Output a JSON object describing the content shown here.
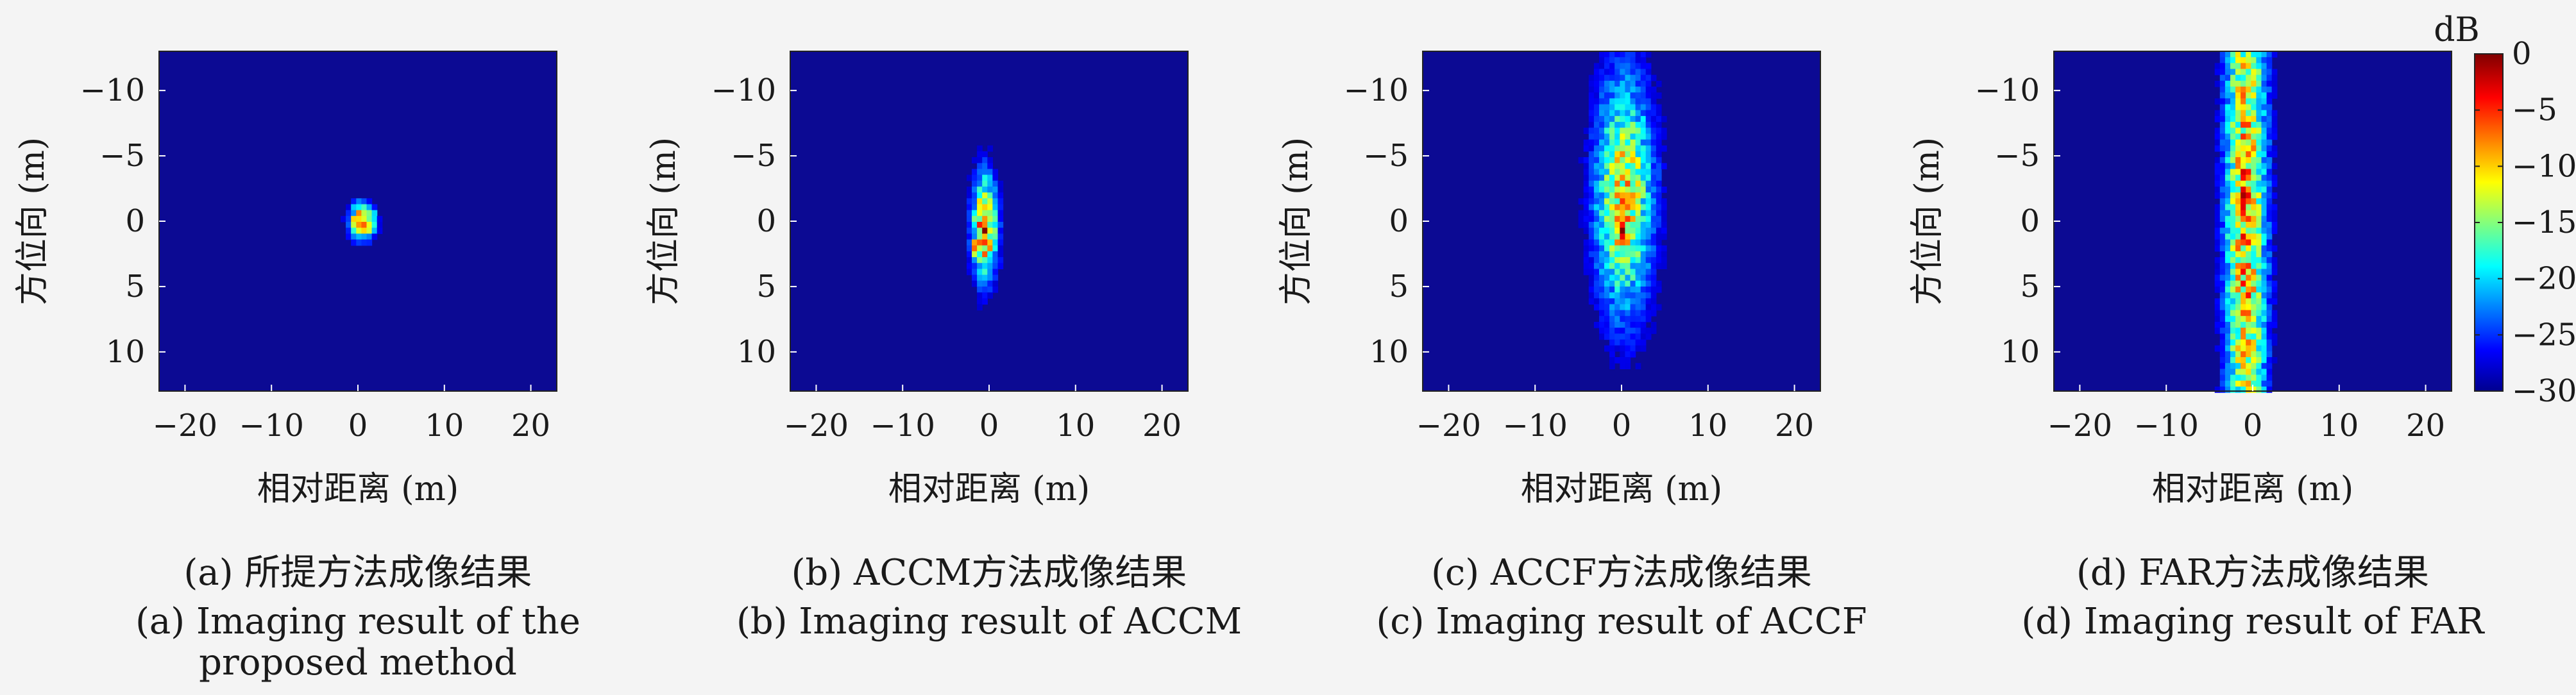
{
  "chart_data": [
    {
      "type": "heatmap",
      "caption_cn": "(a) 所提方法成像结果",
      "caption_en": [
        "(a) Imaging result of the",
        "proposed method"
      ],
      "xlabel": "相对距离 (m)",
      "ylabel": "方位向 (m)",
      "xlim": [
        -23,
        23
      ],
      "ylim": [
        -13,
        13
      ],
      "xticks": [
        -20,
        -10,
        0,
        10,
        20
      ],
      "yticks": [
        -10,
        -5,
        0,
        5,
        10
      ],
      "y_axis_inverted": true,
      "energy_blobs": [
        {
          "x": 0.5,
          "y": 0.0,
          "sx": 1.0,
          "sy": 0.9,
          "peak_db": 0
        },
        {
          "x": 1.2,
          "y": 0.6,
          "sx": 0.5,
          "sy": 0.5,
          "peak_db": -12
        }
      ]
    },
    {
      "type": "heatmap",
      "caption_cn": "(b) ACCM方法成像结果",
      "caption_en": [
        "(b) Imaging result of ACCM"
      ],
      "xlabel": "相对距离 (m)",
      "ylabel": "方位向 (m)",
      "xlim": [
        -23,
        23
      ],
      "ylim": [
        -13,
        13
      ],
      "xticks": [
        -20,
        -10,
        0,
        10,
        20
      ],
      "yticks": [
        -10,
        -5,
        0,
        5,
        10
      ],
      "y_axis_inverted": true,
      "energy_blobs": [
        {
          "x": -0.5,
          "y": 0.5,
          "sx": 1.0,
          "sy": 2.8,
          "peak_db": -2
        },
        {
          "x": -1.5,
          "y": 2.0,
          "sx": 0.5,
          "sy": 0.6,
          "peak_db": -5
        }
      ]
    },
    {
      "type": "heatmap",
      "caption_cn": "(c) ACCF方法成像结果",
      "caption_en": [
        "(c) Imaging result of ACCF"
      ],
      "xlabel": "相对距离 (m)",
      "ylabel": "方位向 (m)",
      "xlim": [
        -23,
        23
      ],
      "ylim": [
        -13,
        13
      ],
      "xticks": [
        -20,
        -10,
        0,
        10,
        20
      ],
      "yticks": [
        -10,
        -5,
        0,
        5,
        10
      ],
      "y_axis_inverted": true,
      "energy_blobs": [
        {
          "x": 0.3,
          "y": -2.0,
          "sx": 2.4,
          "sy": 6.5,
          "peak_db": -8
        },
        {
          "x": 0.0,
          "y": 0.5,
          "sx": 1.2,
          "sy": 3.0,
          "peak_db": -3
        }
      ]
    },
    {
      "type": "heatmap",
      "caption_cn": "(d) FAR方法成像结果",
      "caption_en": [
        "(d) Imaging result of FAR"
      ],
      "xlabel": "相对距离 (m)",
      "ylabel": "方位向 (m)",
      "xlim": [
        -23,
        23
      ],
      "ylim": [
        -13,
        13
      ],
      "xticks": [
        -20,
        -10,
        0,
        10,
        20
      ],
      "yticks": [
        -10,
        -5,
        0,
        5,
        10
      ],
      "y_axis_inverted": true,
      "energy_blobs": [
        {
          "x": -0.8,
          "y": 0.0,
          "sx": 1.7,
          "sy": 20.0,
          "peak_db": -6
        },
        {
          "x": -1.0,
          "y": -3.0,
          "sx": 0.8,
          "sy": 2.5,
          "peak_db": -2
        }
      ]
    }
  ],
  "colorbar": {
    "label": "dB",
    "ticks": [
      0,
      -5,
      -10,
      -15,
      -20,
      -25,
      -30
    ],
    "range": [
      -30,
      0
    ],
    "colormap": "jet"
  }
}
